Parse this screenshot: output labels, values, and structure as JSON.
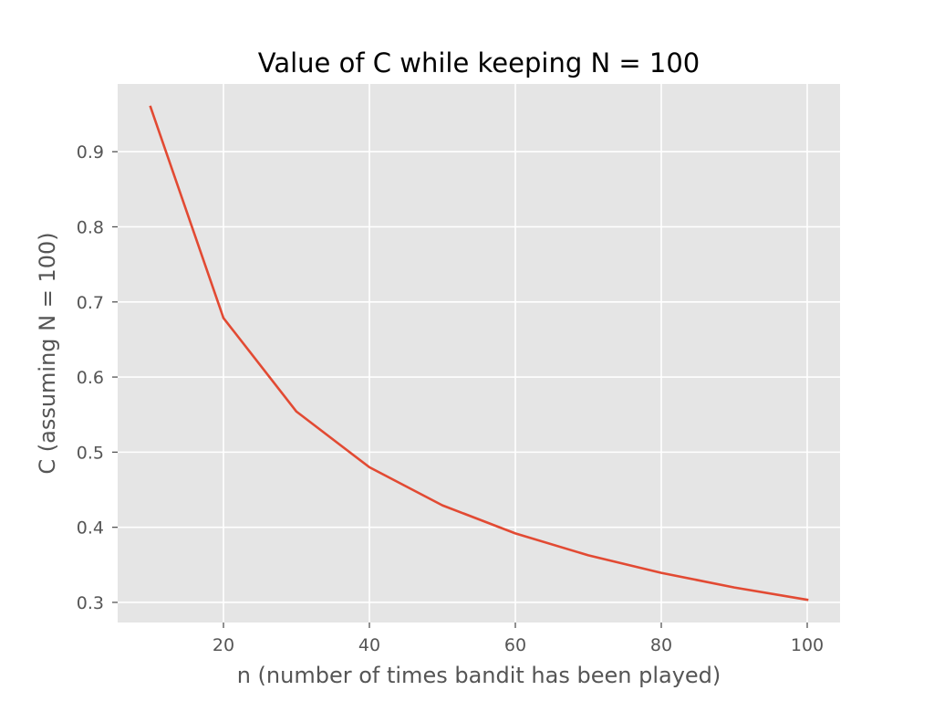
{
  "chart_data": {
    "type": "line",
    "title": "Value of C while keeping N = 100",
    "xlabel": "n (number of times bandit has been played)",
    "ylabel": "C (assuming N = 100)",
    "xlim": [
      5.5,
      104.5
    ],
    "ylim": [
      0.2732,
      0.9902
    ],
    "xticks": [
      20,
      40,
      60,
      80,
      100
    ],
    "yticks": [
      0.3,
      0.4,
      0.5,
      0.6,
      0.7,
      0.8,
      0.9
    ],
    "xtick_labels": [
      "20",
      "40",
      "60",
      "80",
      "100"
    ],
    "ytick_labels": [
      "0.3",
      "0.4",
      "0.5",
      "0.6",
      "0.7",
      "0.8",
      "0.9"
    ],
    "grid": true,
    "series": [
      {
        "x": [
          10,
          20,
          30,
          40,
          50,
          60,
          70,
          80,
          90,
          100
        ],
        "y": [
          0.9597,
          0.6786,
          0.5541,
          0.4799,
          0.4292,
          0.3918,
          0.3627,
          0.3393,
          0.3199,
          0.3035
        ],
        "color": "#E24A33"
      }
    ],
    "colors": {
      "plot_background": "#E5E5E5",
      "grid": "#FFFFFF",
      "tick": "#555555",
      "line": "#E24A33"
    }
  }
}
